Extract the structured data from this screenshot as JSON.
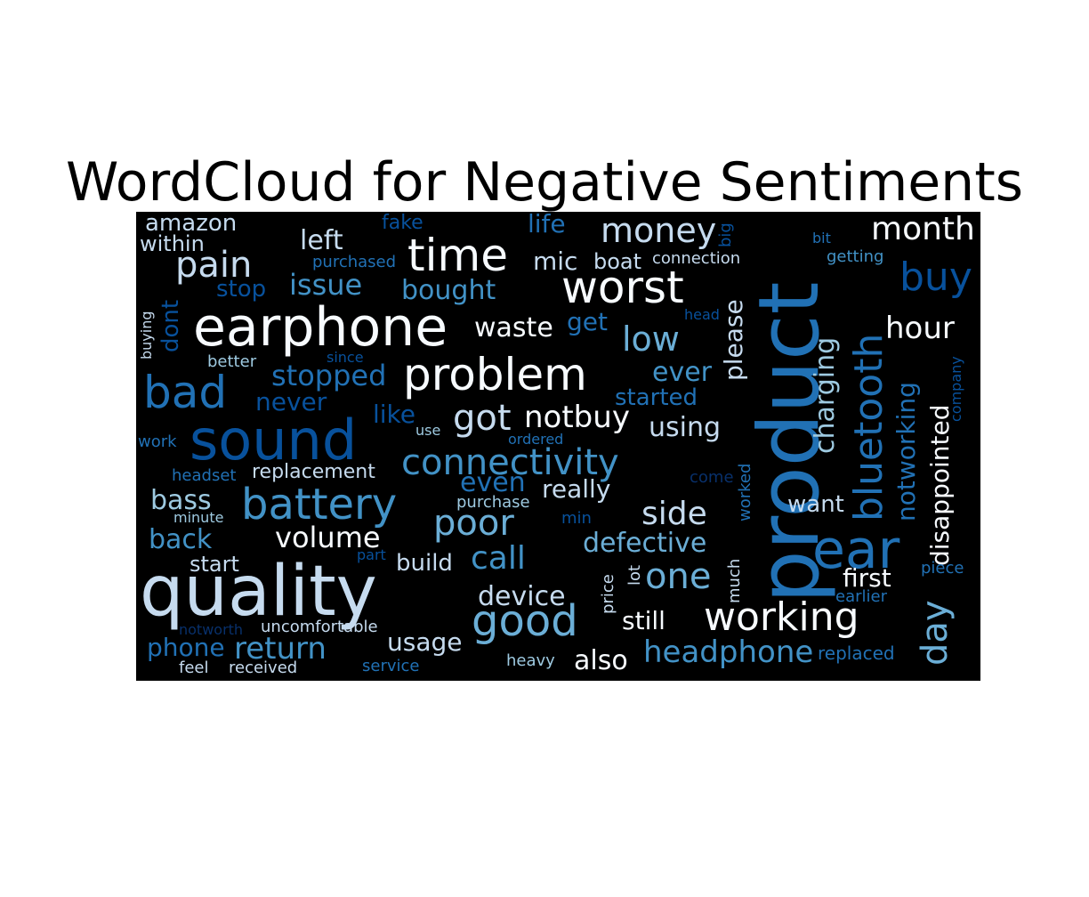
{
  "title": "WordCloud for Negative Sentiments",
  "colors": {
    "background": "#000000",
    "white": "#f7fbff",
    "pale": "#c6dbef",
    "light": "#9ecae1",
    "mid": "#6baed6",
    "blue": "#4292c6",
    "strong": "#2171b5",
    "deep": "#08519c",
    "navy": "#08306b"
  },
  "words": [
    {
      "text": "product",
      "tone": "strong"
    },
    {
      "text": "quality",
      "tone": "pale"
    },
    {
      "text": "earphone",
      "tone": "white"
    },
    {
      "text": "sound",
      "tone": "deep"
    },
    {
      "text": "problem",
      "tone": "white"
    },
    {
      "text": "worst",
      "tone": "white"
    },
    {
      "text": "time",
      "tone": "white"
    },
    {
      "text": "bad",
      "tone": "strong"
    },
    {
      "text": "battery",
      "tone": "blue"
    },
    {
      "text": "good",
      "tone": "mid"
    },
    {
      "text": "ear",
      "tone": "strong"
    },
    {
      "text": "bluetooth",
      "tone": "strong"
    },
    {
      "text": "working",
      "tone": "white"
    },
    {
      "text": "connectivity",
      "tone": "blue"
    },
    {
      "text": "poor",
      "tone": "mid"
    },
    {
      "text": "pain",
      "tone": "pale"
    },
    {
      "text": "money",
      "tone": "pale"
    },
    {
      "text": "month",
      "tone": "white"
    },
    {
      "text": "buy",
      "tone": "deep"
    },
    {
      "text": "issue",
      "tone": "blue"
    },
    {
      "text": "got",
      "tone": "pale"
    },
    {
      "text": "notbuy",
      "tone": "white"
    },
    {
      "text": "low",
      "tone": "mid"
    },
    {
      "text": "day",
      "tone": "mid"
    },
    {
      "text": "call",
      "tone": "blue"
    },
    {
      "text": "one",
      "tone": "mid"
    },
    {
      "text": "defective",
      "tone": "mid"
    },
    {
      "text": "side",
      "tone": "pale"
    },
    {
      "text": "return",
      "tone": "blue"
    },
    {
      "text": "headphone",
      "tone": "blue"
    },
    {
      "text": "device",
      "tone": "pale"
    },
    {
      "text": "volume",
      "tone": "white"
    },
    {
      "text": "stopped",
      "tone": "strong"
    },
    {
      "text": "hour",
      "tone": "white"
    },
    {
      "text": "disappointed",
      "tone": "white"
    },
    {
      "text": "notworking",
      "tone": "strong"
    },
    {
      "text": "charging",
      "tone": "light"
    },
    {
      "text": "bought",
      "tone": "blue"
    },
    {
      "text": "left",
      "tone": "pale"
    },
    {
      "text": "waste",
      "tone": "white"
    },
    {
      "text": "ever",
      "tone": "blue"
    },
    {
      "text": "started",
      "tone": "strong"
    },
    {
      "text": "please",
      "tone": "pale"
    },
    {
      "text": "mic",
      "tone": "pale"
    },
    {
      "text": "boat",
      "tone": "pale"
    },
    {
      "text": "life",
      "tone": "strong"
    },
    {
      "text": "amazon",
      "tone": "pale"
    },
    {
      "text": "within",
      "tone": "pale"
    },
    {
      "text": "dont",
      "tone": "deep"
    },
    {
      "text": "bass",
      "tone": "light"
    },
    {
      "text": "back",
      "tone": "blue"
    },
    {
      "text": "start",
      "tone": "pale"
    },
    {
      "text": "using",
      "tone": "pale"
    },
    {
      "text": "even",
      "tone": "strong"
    },
    {
      "text": "really",
      "tone": "pale"
    },
    {
      "text": "build",
      "tone": "pale"
    },
    {
      "text": "first",
      "tone": "white"
    },
    {
      "text": "want",
      "tone": "pale"
    },
    {
      "text": "still",
      "tone": "white"
    },
    {
      "text": "also",
      "tone": "white"
    },
    {
      "text": "usage",
      "tone": "pale"
    },
    {
      "text": "phone",
      "tone": "strong"
    },
    {
      "text": "like",
      "tone": "deep"
    },
    {
      "text": "never",
      "tone": "deep"
    },
    {
      "text": "get",
      "tone": "strong"
    },
    {
      "text": "stop",
      "tone": "deep"
    },
    {
      "text": "replacement",
      "tone": "pale"
    },
    {
      "text": "fake",
      "tone": "deep"
    },
    {
      "text": "purchased",
      "tone": "strong"
    },
    {
      "text": "connection",
      "tone": "pale"
    },
    {
      "text": "getting",
      "tone": "blue"
    },
    {
      "text": "bit",
      "tone": "strong"
    },
    {
      "text": "big",
      "tone": "deep"
    },
    {
      "text": "head",
      "tone": "deep"
    },
    {
      "text": "better",
      "tone": "light"
    },
    {
      "text": "since",
      "tone": "deep"
    },
    {
      "text": "buying",
      "tone": "pale"
    },
    {
      "text": "work",
      "tone": "strong"
    },
    {
      "text": "use",
      "tone": "light"
    },
    {
      "text": "ordered",
      "tone": "strong"
    },
    {
      "text": "headset",
      "tone": "strong"
    },
    {
      "text": "minute",
      "tone": "light"
    },
    {
      "text": "purchase",
      "tone": "light"
    },
    {
      "text": "min",
      "tone": "deep"
    },
    {
      "text": "part",
      "tone": "deep"
    },
    {
      "text": "come",
      "tone": "navy"
    },
    {
      "text": "worked",
      "tone": "strong"
    },
    {
      "text": "much",
      "tone": "pale"
    },
    {
      "text": "lot",
      "tone": "pale"
    },
    {
      "text": "price",
      "tone": "pale"
    },
    {
      "text": "company",
      "tone": "deep"
    },
    {
      "text": "piece",
      "tone": "strong"
    },
    {
      "text": "earlier",
      "tone": "strong"
    },
    {
      "text": "replaced",
      "tone": "strong"
    },
    {
      "text": "notworth",
      "tone": "navy"
    },
    {
      "text": "uncomfortable",
      "tone": "pale"
    },
    {
      "text": "feel",
      "tone": "pale"
    },
    {
      "text": "received",
      "tone": "pale"
    },
    {
      "text": "service",
      "tone": "strong"
    },
    {
      "text": "heavy",
      "tone": "light"
    }
  ]
}
